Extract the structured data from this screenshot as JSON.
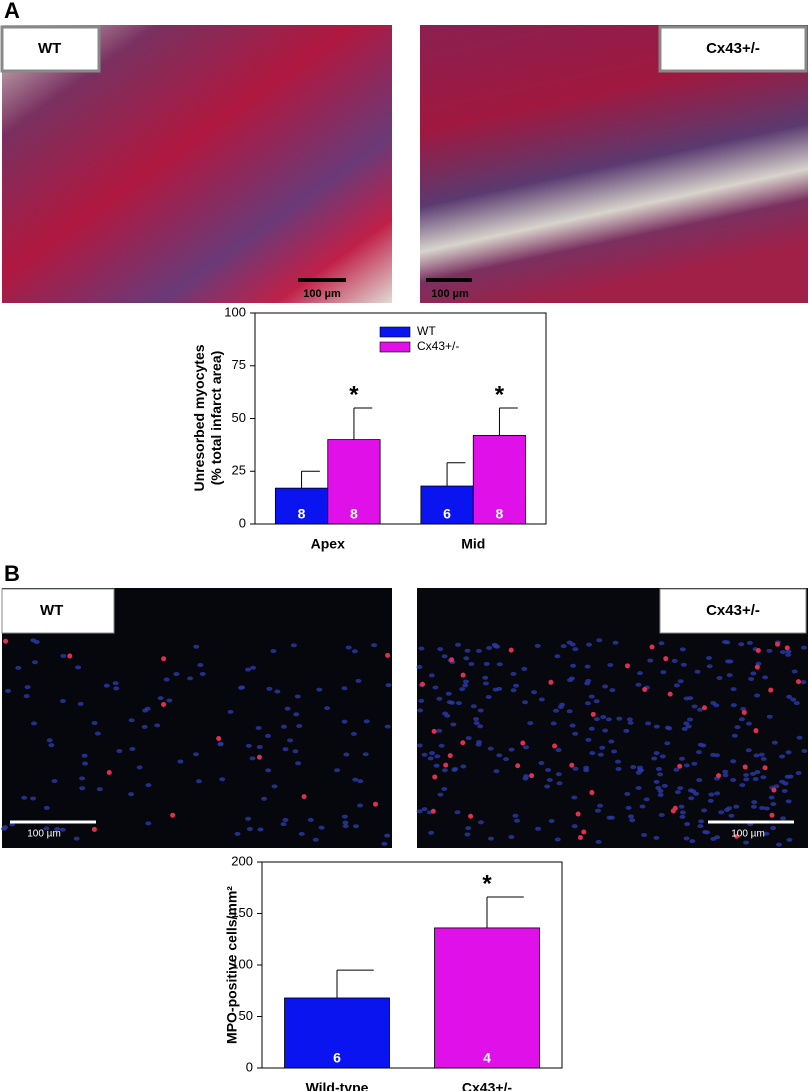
{
  "panels": [
    {
      "label": "A",
      "images": [
        {
          "label": "WT",
          "scale": "100 µm"
        },
        {
          "label": "Cx43+/-",
          "scale": "100 µm"
        }
      ]
    },
    {
      "label": "B",
      "images": [
        {
          "label": "WT",
          "scale": "100 µm"
        },
        {
          "label": "Cx43+/-",
          "scale": "100 µm"
        }
      ]
    }
  ],
  "chart_data": [
    {
      "type": "bar",
      "ylabel": [
        "Unresorbed myocytes",
        "(% total infarct area)"
      ],
      "categories": [
        "Apex",
        "Mid"
      ],
      "series": [
        {
          "name": "WT",
          "color": "#0a14f0",
          "values": [
            17,
            18
          ],
          "errors": [
            8,
            11
          ],
          "counts": [
            8,
            6
          ]
        },
        {
          "name": "Cx43+/-",
          "color": "#e010e8",
          "values": [
            40,
            42
          ],
          "errors": [
            15,
            13
          ],
          "counts": [
            8,
            8
          ],
          "annotations": [
            "*",
            "*"
          ]
        }
      ],
      "ylim": [
        0,
        100
      ],
      "yticks": [
        0,
        25,
        50,
        75,
        100
      ],
      "legend": "top"
    },
    {
      "type": "bar",
      "ylabel": [
        "MPO-positive cells/mm²"
      ],
      "categories": [
        "Wild-type",
        "Cx43+/-"
      ],
      "values": [
        68,
        136
      ],
      "errors": [
        27,
        30
      ],
      "colors": [
        "#0a14f0",
        "#e010e8"
      ],
      "counts": [
        6,
        4
      ],
      "annotations": [
        null,
        "*"
      ],
      "ylim": [
        0,
        200
      ],
      "yticks": [
        0,
        50,
        100,
        150,
        200
      ]
    }
  ]
}
